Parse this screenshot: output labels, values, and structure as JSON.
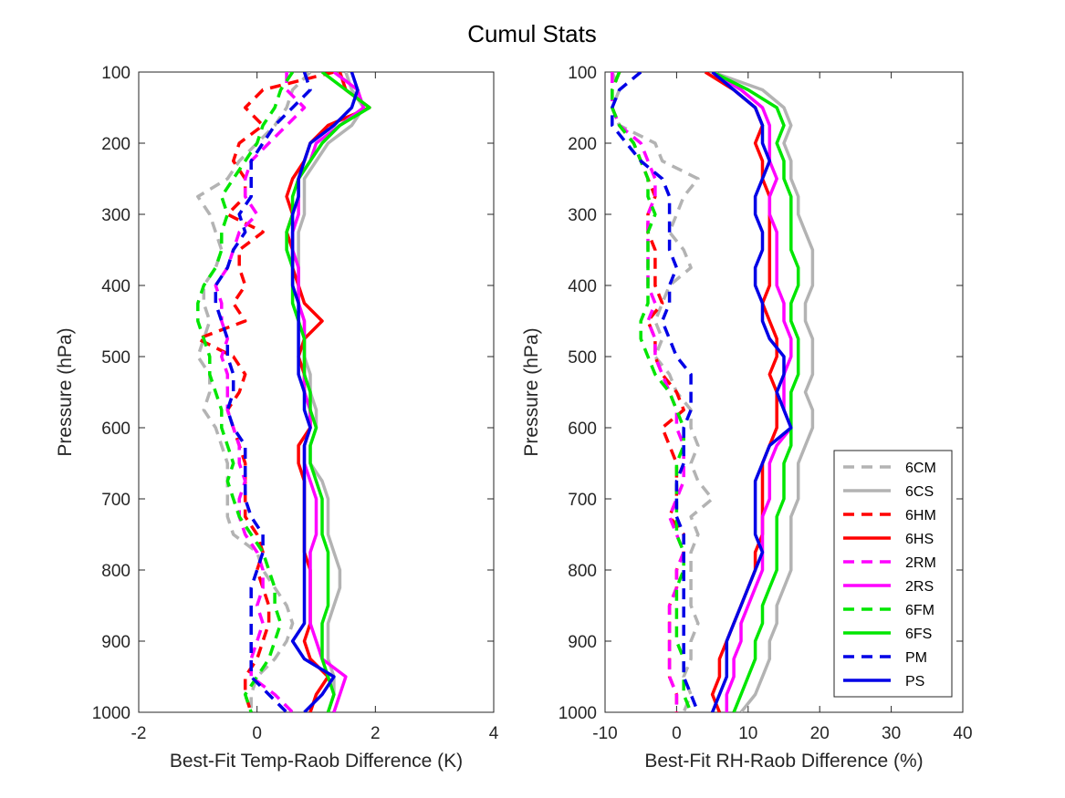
{
  "figure": {
    "title": "Cumul Stats"
  },
  "chart_data": [
    {
      "type": "line",
      "xlabel": "Best-Fit Temp-Raob Difference (K)",
      "ylabel": "Pressure (hPa)",
      "xlim": [
        -2,
        4
      ],
      "ylim": [
        100,
        1000
      ],
      "y_reversed": true,
      "xticks": [
        -2,
        0,
        2,
        4
      ],
      "yticks": [
        100,
        200,
        300,
        400,
        500,
        600,
        700,
        800,
        900,
        1000
      ],
      "grid": false,
      "pressure": [
        100,
        125,
        150,
        175,
        200,
        225,
        250,
        275,
        300,
        325,
        350,
        375,
        400,
        425,
        450,
        475,
        500,
        525,
        550,
        575,
        600,
        625,
        650,
        675,
        700,
        725,
        750,
        775,
        800,
        825,
        850,
        875,
        900,
        925,
        950,
        975,
        1000
      ],
      "series": [
        {
          "name": "6CM",
          "color": "#b3b3b3",
          "dash": true,
          "values": [
            0.9,
            0.6,
            0.5,
            0.3,
            0.0,
            -0.3,
            -0.5,
            -1.0,
            -0.8,
            -0.7,
            -0.6,
            -0.7,
            -0.9,
            -0.9,
            -0.8,
            -0.9,
            -1.0,
            -0.8,
            -0.8,
            -0.9,
            -0.7,
            -0.6,
            -0.5,
            -0.5,
            -0.5,
            -0.5,
            -0.4,
            0.0,
            0.1,
            0.3,
            0.5,
            0.6,
            0.5,
            0.3,
            0.0,
            -0.1,
            -0.1
          ]
        },
        {
          "name": "6CS",
          "color": "#b3b3b3",
          "dash": false,
          "values": [
            1.5,
            1.6,
            1.8,
            1.6,
            1.2,
            1.0,
            0.8,
            0.8,
            0.8,
            0.7,
            0.7,
            0.7,
            0.7,
            0.7,
            0.8,
            0.8,
            0.8,
            0.9,
            0.9,
            1.0,
            1.0,
            0.9,
            0.9,
            1.1,
            1.2,
            1.2,
            1.2,
            1.3,
            1.4,
            1.4,
            1.3,
            1.2,
            1.2,
            1.2,
            1.3,
            1.3,
            1.2
          ]
        },
        {
          "name": "6HM",
          "color": "#ff0000",
          "dash": true,
          "values": [
            1.3,
            0.1,
            -0.2,
            0.1,
            -0.3,
            -0.4,
            -0.2,
            -0.2,
            -0.5,
            0.1,
            -0.3,
            -0.3,
            -0.2,
            -0.4,
            -0.2,
            -1.0,
            -0.4,
            -0.2,
            -0.3,
            -0.5,
            -0.4,
            -0.3,
            -0.2,
            -0.2,
            -0.2,
            -0.2,
            0.0,
            0.1,
            0.0,
            0.1,
            0.2,
            0.2,
            0.1,
            0.0,
            -0.2,
            -0.2,
            -0.1
          ]
        },
        {
          "name": "6HS",
          "color": "#ff0000",
          "dash": false,
          "values": [
            1.4,
            1.5,
            1.9,
            1.2,
            0.9,
            0.8,
            0.6,
            0.5,
            0.6,
            0.5,
            0.6,
            0.6,
            0.7,
            0.8,
            1.1,
            0.8,
            0.7,
            0.8,
            0.8,
            0.9,
            0.9,
            0.7,
            0.7,
            0.8,
            0.8,
            0.8,
            0.8,
            0.8,
            0.9,
            0.9,
            0.9,
            0.9,
            0.8,
            0.9,
            1.2,
            1.0,
            0.9
          ]
        },
        {
          "name": "2RM",
          "color": "#ff00ff",
          "dash": true,
          "values": [
            0.5,
            0.5,
            0.8,
            0.5,
            0.2,
            -0.1,
            -0.2,
            -0.2,
            0.0,
            -0.3,
            -0.4,
            -0.5,
            -0.7,
            -0.6,
            -0.6,
            -0.5,
            -0.6,
            -0.5,
            -0.5,
            -0.5,
            -0.4,
            -0.3,
            -0.3,
            -0.2,
            -0.3,
            -0.3,
            -0.2,
            0.0,
            0.1,
            0.1,
            0.0,
            0.1,
            0.0,
            -0.1,
            -0.1,
            0.3,
            0.6
          ]
        },
        {
          "name": "2RS",
          "color": "#ff00ff",
          "dash": false,
          "values": [
            1.3,
            1.7,
            1.8,
            1.4,
            1.0,
            0.9,
            0.7,
            0.7,
            0.7,
            0.6,
            0.6,
            0.7,
            0.7,
            0.7,
            0.8,
            0.8,
            0.8,
            0.8,
            0.8,
            0.9,
            0.9,
            0.8,
            0.8,
            0.9,
            1.0,
            1.0,
            1.0,
            0.9,
            0.9,
            0.9,
            0.9,
            0.9,
            1.0,
            1.1,
            1.5,
            1.4,
            1.3
          ]
        },
        {
          "name": "6FM",
          "color": "#00e600",
          "dash": true,
          "values": [
            0.6,
            0.4,
            0.3,
            0.1,
            0.0,
            -0.2,
            -0.4,
            -0.6,
            -0.5,
            -0.6,
            -0.6,
            -0.7,
            -0.9,
            -1.0,
            -1.0,
            -0.9,
            -0.8,
            -0.8,
            -0.7,
            -0.6,
            -0.6,
            -0.5,
            -0.4,
            -0.5,
            -0.4,
            -0.3,
            -0.1,
            0.1,
            0.2,
            0.3,
            0.3,
            0.4,
            0.3,
            0.2,
            0.0,
            -0.2,
            -0.1
          ]
        },
        {
          "name": "6FS",
          "color": "#00e600",
          "dash": false,
          "values": [
            1.1,
            1.5,
            1.9,
            1.4,
            1.1,
            0.9,
            0.7,
            0.6,
            0.6,
            0.5,
            0.5,
            0.6,
            0.6,
            0.6,
            0.7,
            0.8,
            0.8,
            0.8,
            0.9,
            0.9,
            1.0,
            0.9,
            0.9,
            1.0,
            1.1,
            1.1,
            1.1,
            1.2,
            1.2,
            1.2,
            1.2,
            1.1,
            1.1,
            1.1,
            1.2,
            1.3,
            1.2
          ]
        },
        {
          "name": "PM",
          "color": "#0000e6",
          "dash": true,
          "values": [
            0.8,
            0.9,
            0.6,
            0.3,
            0.1,
            -0.1,
            -0.1,
            -0.1,
            -0.3,
            -0.2,
            -0.4,
            -0.5,
            -0.7,
            -0.7,
            -0.6,
            -0.5,
            -0.5,
            -0.4,
            -0.4,
            -0.5,
            -0.4,
            -0.2,
            -0.2,
            -0.2,
            -0.2,
            -0.1,
            0.1,
            0.1,
            0.0,
            -0.1,
            -0.1,
            -0.1,
            -0.1,
            -0.1,
            -0.1,
            0.2,
            0.5
          ]
        },
        {
          "name": "PS",
          "color": "#0000e6",
          "dash": false,
          "values": [
            1.6,
            1.7,
            1.6,
            1.3,
            0.9,
            0.8,
            0.7,
            0.7,
            0.6,
            0.6,
            0.6,
            0.6,
            0.6,
            0.7,
            0.7,
            0.7,
            0.7,
            0.7,
            0.8,
            0.8,
            0.9,
            0.8,
            0.8,
            0.8,
            0.8,
            0.8,
            0.8,
            0.8,
            0.8,
            0.8,
            0.8,
            0.8,
            0.6,
            0.8,
            1.3,
            1.1,
            0.8
          ]
        }
      ]
    },
    {
      "type": "line",
      "xlabel": "Best-Fit RH-Raob Difference (%)",
      "ylabel": "Pressure (hPa)",
      "xlim": [
        -10,
        40
      ],
      "ylim": [
        100,
        1000
      ],
      "y_reversed": true,
      "xticks": [
        -10,
        0,
        10,
        20,
        30,
        40
      ],
      "yticks": [
        100,
        200,
        300,
        400,
        500,
        600,
        700,
        800,
        900,
        1000
      ],
      "grid": false,
      "legend_loc": "bottom-right",
      "pressure": [
        100,
        125,
        150,
        175,
        200,
        225,
        250,
        275,
        300,
        325,
        350,
        375,
        400,
        425,
        450,
        475,
        500,
        525,
        550,
        575,
        600,
        625,
        650,
        675,
        700,
        725,
        750,
        775,
        800,
        825,
        850,
        875,
        900,
        925,
        950,
        975,
        1000
      ],
      "series": [
        {
          "name": "6CM",
          "color": "#b3b3b3",
          "dash": true,
          "values": [
            -9,
            -8,
            -9,
            -8,
            -3,
            -2,
            3,
            1,
            0,
            -1,
            1,
            2,
            -1,
            -2,
            -3,
            -2,
            -3,
            -1,
            0,
            2,
            2,
            3,
            2,
            3,
            5,
            2,
            3,
            2,
            2,
            2,
            2,
            3,
            2,
            2,
            1,
            2,
            1
          ]
        },
        {
          "name": "6CS",
          "color": "#b3b3b3",
          "dash": false,
          "values": [
            5,
            12,
            15,
            16,
            15,
            16,
            16,
            17,
            17,
            18,
            19,
            19,
            19,
            18,
            18,
            19,
            19,
            19,
            18,
            19,
            19,
            18,
            17,
            17,
            17,
            16,
            16,
            16,
            16,
            15,
            14,
            14,
            13,
            13,
            12,
            11,
            9
          ]
        },
        {
          "name": "6HM",
          "color": "#ff0000",
          "dash": true,
          "values": [
            -8,
            -9,
            -9,
            -8,
            -6,
            -5,
            -4,
            -3,
            -4,
            -4,
            -3,
            -3,
            -3,
            -2,
            -4,
            -3,
            -3,
            -2,
            0,
            1,
            -2,
            -1,
            0,
            0,
            0,
            -1,
            1,
            1,
            0,
            0,
            -1,
            -1,
            -1,
            -1,
            -1,
            0,
            0
          ]
        },
        {
          "name": "6HS",
          "color": "#ff0000",
          "dash": false,
          "values": [
            4,
            8,
            11,
            12,
            11,
            12,
            12,
            13,
            13,
            13,
            13,
            13,
            13,
            12,
            13,
            14,
            14,
            13,
            14,
            14,
            14,
            13,
            12,
            12,
            12,
            12,
            12,
            11,
            11,
            10,
            9,
            8,
            7,
            6,
            6,
            5,
            6
          ]
        },
        {
          "name": "2RM",
          "color": "#ff00ff",
          "dash": true,
          "values": [
            -9,
            -9,
            -9,
            -8,
            -5,
            -4,
            -3,
            -3,
            -4,
            -4,
            -4,
            -4,
            -4,
            -3,
            -4,
            -3,
            -3,
            -2,
            -1,
            0,
            0,
            1,
            1,
            1,
            0,
            -1,
            0,
            1,
            0,
            0,
            -1,
            -1,
            -1,
            -1,
            -1,
            0,
            0
          ]
        },
        {
          "name": "2RS",
          "color": "#ff00ff",
          "dash": false,
          "values": [
            5,
            9,
            12,
            13,
            13,
            13,
            14,
            13,
            13,
            14,
            14,
            14,
            14,
            15,
            15,
            16,
            16,
            15,
            15,
            15,
            16,
            14,
            13,
            13,
            13,
            12,
            12,
            12,
            12,
            11,
            10,
            9,
            9,
            8,
            8,
            7,
            7
          ]
        },
        {
          "name": "6FM",
          "color": "#00e600",
          "dash": true,
          "values": [
            -8,
            -9,
            -9,
            -8,
            -6,
            -5,
            -4,
            -4,
            -3,
            -4,
            -4,
            -4,
            -4,
            -4,
            -5,
            -5,
            -4,
            -3,
            -1,
            0,
            1,
            1,
            0,
            0,
            0,
            0,
            0,
            1,
            1,
            0,
            0,
            0,
            0,
            1,
            1,
            1,
            2
          ]
        },
        {
          "name": "6FS",
          "color": "#00e600",
          "dash": false,
          "values": [
            5,
            10,
            14,
            15,
            14,
            15,
            15,
            16,
            16,
            16,
            16,
            17,
            17,
            16,
            16,
            17,
            17,
            17,
            16,
            16,
            16,
            16,
            15,
            15,
            15,
            14,
            14,
            14,
            14,
            13,
            12,
            12,
            11,
            11,
            10,
            9,
            8
          ]
        },
        {
          "name": "PM",
          "color": "#0000e6",
          "dash": true,
          "values": [
            -5,
            -8,
            -9,
            -9,
            -7,
            -5,
            -2,
            -1,
            -1,
            -1,
            -1,
            0,
            -1,
            -1,
            -2,
            -1,
            0,
            2,
            2,
            2,
            1,
            1,
            1,
            0,
            0,
            0,
            1,
            1,
            1,
            1,
            1,
            1,
            1,
            1,
            1,
            2,
            3
          ]
        },
        {
          "name": "PS",
          "color": "#0000e6",
          "dash": false,
          "values": [
            5,
            8,
            11,
            12,
            12,
            13,
            12,
            11,
            11,
            12,
            12,
            11,
            11,
            12,
            12,
            13,
            15,
            15,
            14,
            15,
            16,
            13,
            12,
            11,
            11,
            11,
            11,
            12,
            11,
            10,
            9,
            8,
            7,
            7,
            7,
            6,
            5
          ]
        }
      ]
    }
  ]
}
